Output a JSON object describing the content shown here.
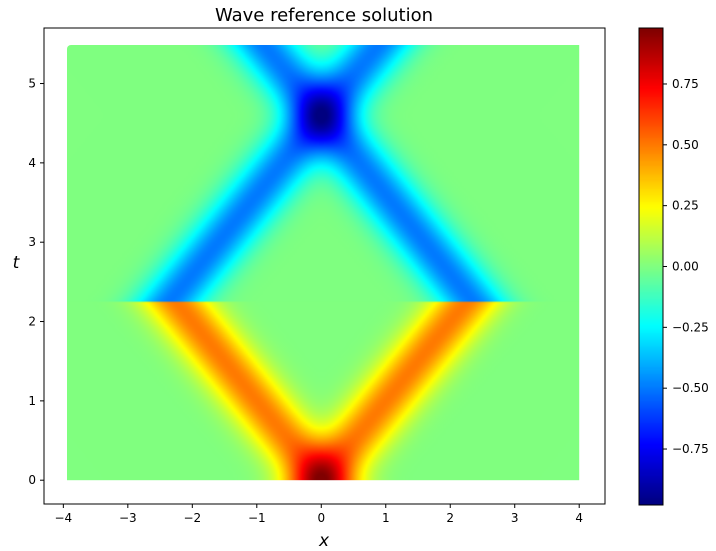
{
  "chart_data": {
    "type": "heatmap",
    "title": "Wave reference solution",
    "xlabel": "x",
    "ylabel": "t",
    "xlim": [
      -4.3,
      4.4
    ],
    "ylim": [
      -0.3,
      5.7
    ],
    "data_extent": {
      "x": [
        -4,
        4
      ],
      "t": [
        0,
        5.5
      ]
    },
    "xticks": [
      -4,
      -3,
      -2,
      -1,
      0,
      1,
      2,
      3,
      4
    ],
    "xtick_labels": [
      "−4",
      "−3",
      "−2",
      "−1",
      "0",
      "1",
      "2",
      "3",
      "4"
    ],
    "yticks": [
      0,
      1,
      2,
      3,
      4,
      5
    ],
    "ytick_labels": [
      "0",
      "1",
      "2",
      "3",
      "4",
      "5"
    ],
    "colormap": "jet",
    "colorbar": {
      "vmin": -0.98,
      "vmax": 0.98,
      "ticks": [
        0.75,
        0.5,
        0.25,
        0.0,
        -0.25,
        -0.5,
        -0.75
      ],
      "tick_labels": [
        "0.75",
        "0.50",
        "0.25",
        "0.00",
        "−0.25",
        "−0.50",
        "−0.75"
      ],
      "position": "right"
    },
    "features": [
      {
        "description": "peak at origin",
        "x": 0,
        "t": 0,
        "value": 0.98
      },
      {
        "description": "positive branch arms",
        "from": [
          0,
          0
        ],
        "to_left": [
          -3.5,
          1.9
        ],
        "to_right": [
          3.5,
          1.9
        ],
        "value": 0.55
      },
      {
        "description": "negative branch arms",
        "from": [
          0,
          4.6
        ],
        "to_left": [
          -3.5,
          2.6
        ],
        "to_right": [
          3.5,
          2.6
        ],
        "value": -0.55
      },
      {
        "description": "trough",
        "x": 0,
        "t": 4.6,
        "value": -0.98
      }
    ],
    "grid": false
  }
}
